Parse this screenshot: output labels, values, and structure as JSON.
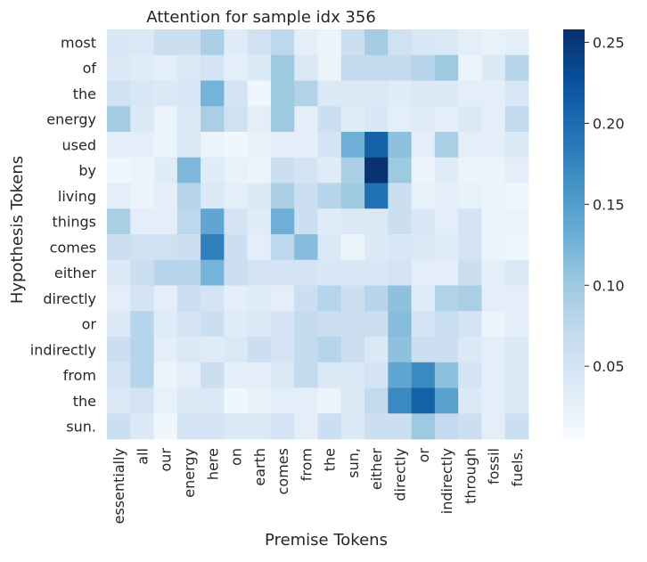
{
  "chart_data": {
    "type": "heatmap",
    "title": "Attention for sample idx 356",
    "xlabel": "Premise Tokens",
    "ylabel": "Hypothesis Tokens",
    "x_tokens": [
      "essentially",
      "all",
      "our",
      "energy",
      "here",
      "on",
      "earth",
      "comes",
      "from",
      "the",
      "sun,",
      "either",
      "directly",
      "or",
      "indirectly",
      "through",
      "fossil",
      "fuels."
    ],
    "y_tokens": [
      "most",
      "of",
      "the",
      "energy",
      "used",
      "by",
      "living",
      "things",
      "comes",
      "either",
      "directly",
      "or",
      "indirectly",
      "from",
      "the",
      "sun."
    ],
    "values": [
      [
        0.045,
        0.04,
        0.06,
        0.06,
        0.09,
        0.035,
        0.055,
        0.075,
        0.03,
        0.02,
        0.06,
        0.095,
        0.055,
        0.045,
        0.04,
        0.03,
        0.025,
        0.03
      ],
      [
        0.04,
        0.035,
        0.03,
        0.04,
        0.05,
        0.03,
        0.04,
        0.1,
        0.04,
        0.02,
        0.07,
        0.07,
        0.07,
        0.08,
        0.1,
        0.02,
        0.04,
        0.08
      ],
      [
        0.055,
        0.045,
        0.04,
        0.045,
        0.125,
        0.05,
        0.015,
        0.1,
        0.085,
        0.04,
        0.04,
        0.04,
        0.035,
        0.04,
        0.04,
        0.03,
        0.03,
        0.045
      ],
      [
        0.095,
        0.04,
        0.02,
        0.04,
        0.09,
        0.055,
        0.03,
        0.1,
        0.03,
        0.06,
        0.035,
        0.045,
        0.03,
        0.035,
        0.03,
        0.04,
        0.03,
        0.07
      ],
      [
        0.03,
        0.03,
        0.02,
        0.04,
        0.02,
        0.015,
        0.025,
        0.03,
        0.03,
        0.05,
        0.13,
        0.21,
        0.11,
        0.03,
        0.09,
        0.03,
        0.03,
        0.04
      ],
      [
        0.015,
        0.02,
        0.035,
        0.12,
        0.035,
        0.025,
        0.02,
        0.06,
        0.05,
        0.035,
        0.09,
        0.255,
        0.1,
        0.02,
        0.035,
        0.02,
        0.02,
        0.03
      ],
      [
        0.03,
        0.02,
        0.03,
        0.08,
        0.04,
        0.03,
        0.04,
        0.09,
        0.06,
        0.08,
        0.1,
        0.195,
        0.06,
        0.025,
        0.03,
        0.025,
        0.02,
        0.015
      ],
      [
        0.09,
        0.03,
        0.03,
        0.075,
        0.14,
        0.05,
        0.035,
        0.13,
        0.06,
        0.035,
        0.04,
        0.04,
        0.06,
        0.045,
        0.03,
        0.05,
        0.02,
        0.02
      ],
      [
        0.06,
        0.055,
        0.055,
        0.06,
        0.18,
        0.06,
        0.03,
        0.075,
        0.115,
        0.04,
        0.02,
        0.04,
        0.045,
        0.04,
        0.035,
        0.05,
        0.02,
        0.015
      ],
      [
        0.04,
        0.06,
        0.08,
        0.08,
        0.125,
        0.06,
        0.05,
        0.05,
        0.05,
        0.045,
        0.045,
        0.045,
        0.05,
        0.03,
        0.03,
        0.06,
        0.03,
        0.04
      ],
      [
        0.03,
        0.05,
        0.03,
        0.06,
        0.05,
        0.03,
        0.035,
        0.03,
        0.06,
        0.08,
        0.06,
        0.08,
        0.11,
        0.035,
        0.085,
        0.09,
        0.03,
        0.03
      ],
      [
        0.04,
        0.08,
        0.035,
        0.05,
        0.06,
        0.035,
        0.04,
        0.05,
        0.07,
        0.06,
        0.06,
        0.06,
        0.115,
        0.05,
        0.065,
        0.05,
        0.02,
        0.03
      ],
      [
        0.06,
        0.08,
        0.03,
        0.04,
        0.035,
        0.04,
        0.06,
        0.05,
        0.07,
        0.08,
        0.06,
        0.04,
        0.11,
        0.06,
        0.06,
        0.04,
        0.03,
        0.04
      ],
      [
        0.05,
        0.08,
        0.02,
        0.03,
        0.06,
        0.03,
        0.03,
        0.04,
        0.07,
        0.04,
        0.04,
        0.05,
        0.14,
        0.17,
        0.11,
        0.05,
        0.03,
        0.04
      ],
      [
        0.04,
        0.05,
        0.025,
        0.04,
        0.04,
        0.015,
        0.025,
        0.03,
        0.03,
        0.02,
        0.04,
        0.07,
        0.17,
        0.21,
        0.145,
        0.04,
        0.03,
        0.04
      ],
      [
        0.06,
        0.04,
        0.015,
        0.05,
        0.05,
        0.04,
        0.04,
        0.05,
        0.03,
        0.06,
        0.04,
        0.06,
        0.06,
        0.1,
        0.07,
        0.06,
        0.03,
        0.06
      ]
    ],
    "vmin": 0.005,
    "vmax": 0.258,
    "colormap": "Blues",
    "colorbar_ticks": [
      "0.05",
      "0.10",
      "0.15",
      "0.20",
      "0.25"
    ],
    "colorbar_tick_values": [
      0.05,
      0.1,
      0.15,
      0.2,
      0.25
    ],
    "grid": false,
    "legend": "colorbar-right"
  }
}
